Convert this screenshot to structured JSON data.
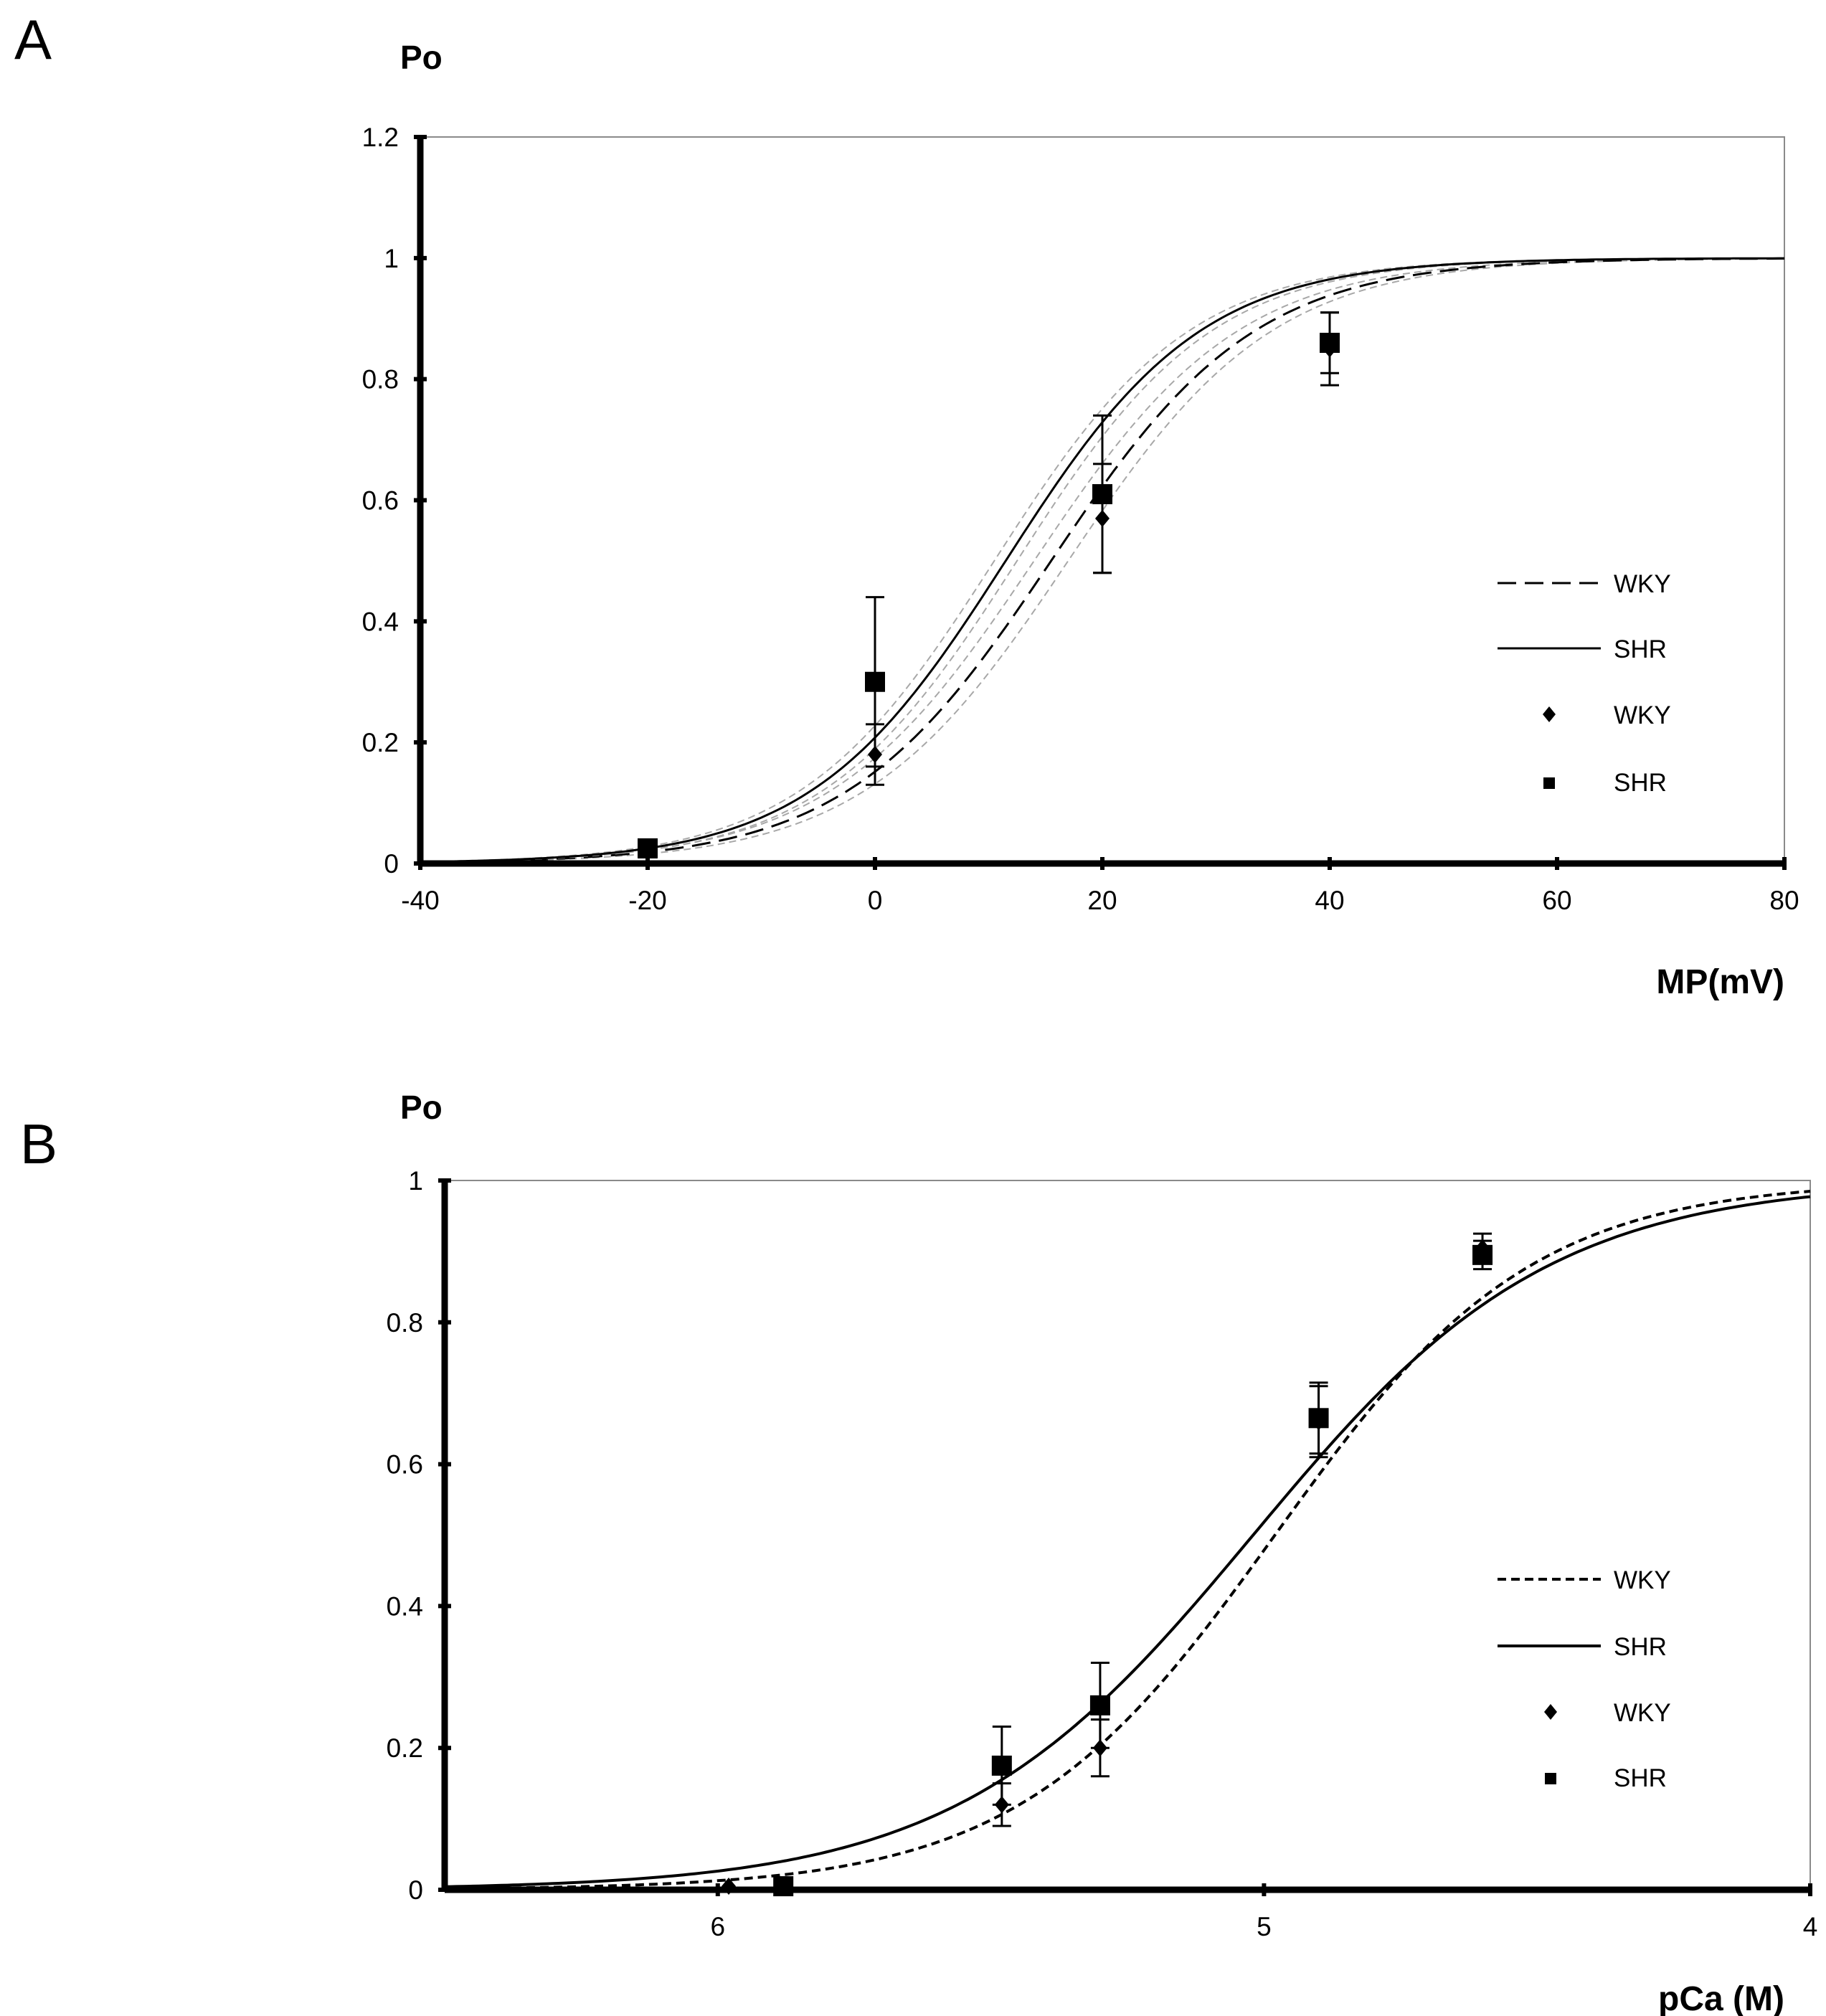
{
  "chart_data": [
    {
      "panel": "A",
      "type": "line",
      "ylabel": "Po",
      "xlabel": "MP(mV)",
      "xlim": [
        -40,
        80
      ],
      "ylim": [
        0,
        1.2
      ],
      "x_ticks": [
        -40,
        -20,
        0,
        20,
        40,
        60,
        80
      ],
      "x_tick_labels": [
        "-40",
        "-20",
        "0",
        "20",
        "40",
        "60",
        "80"
      ],
      "y_ticks": [
        0,
        0.2,
        0.4,
        0.6,
        0.8,
        1,
        1.2
      ],
      "y_tick_labels": [
        "0",
        "0.2",
        "0.4",
        "0.6",
        "0.8",
        "1",
        "1.2"
      ],
      "legend": [
        "WKY",
        "SHR",
        "WKY",
        "SHR"
      ],
      "fits": [
        {
          "name": "WKY",
          "style": "dashed",
          "v_half": 15.5,
          "slope": 9.0,
          "band": [
            14.0,
            17.0
          ]
        },
        {
          "name": "SHR",
          "style": "solid",
          "v_half": 11.5,
          "slope": 8.6,
          "band": [
            10.5,
            12.5
          ]
        }
      ],
      "series": [
        {
          "name": "WKY",
          "marker": "diamond",
          "x": [
            -20,
            0,
            20,
            40
          ],
          "y": [
            0.02,
            0.18,
            0.57,
            0.85
          ],
          "err": [
            0.01,
            0.05,
            0.09,
            0.06
          ]
        },
        {
          "name": "SHR",
          "marker": "square",
          "x": [
            -20,
            0,
            20,
            40
          ],
          "y": [
            0.025,
            0.3,
            0.61,
            0.86
          ],
          "err": [
            0.01,
            0.14,
            0.13,
            0.05
          ]
        }
      ]
    },
    {
      "panel": "B",
      "type": "line",
      "ylabel": "Po",
      "xlabel": "pCa (M)",
      "xlim": [
        6.5,
        4
      ],
      "ylim": [
        0,
        1
      ],
      "x_ticks": [
        6,
        5,
        4
      ],
      "x_tick_labels": [
        "6",
        "5",
        "4"
      ],
      "y_ticks": [
        0,
        0.2,
        0.4,
        0.6,
        0.8,
        1
      ],
      "y_tick_labels": [
        "0",
        "0.2",
        "0.4",
        "0.6",
        "0.8",
        "1"
      ],
      "legend": [
        "WKY",
        "SHR",
        "WKY",
        "SHR"
      ],
      "fits": [
        {
          "name": "WKY",
          "style": "dashed",
          "pca50": 4.98,
          "hill": 1.85
        },
        {
          "name": "SHR",
          "style": "solid",
          "pca50": 5.02,
          "hill": 1.6
        }
      ],
      "series": [
        {
          "name": "WKY",
          "marker": "diamond",
          "x": [
            5.98,
            5.48,
            5.3,
            4.9,
            4.6
          ],
          "y": [
            0.005,
            0.12,
            0.2,
            0.66,
            0.905
          ],
          "err": [
            0,
            0.03,
            0.04,
            0.05,
            0.02
          ]
        },
        {
          "name": "SHR",
          "marker": "square",
          "x": [
            5.88,
            5.48,
            5.3,
            4.9,
            4.6
          ],
          "y": [
            0.005,
            0.175,
            0.26,
            0.665,
            0.895
          ],
          "err": [
            0,
            0.055,
            0.06,
            0.05,
            0.02
          ]
        }
      ]
    }
  ]
}
